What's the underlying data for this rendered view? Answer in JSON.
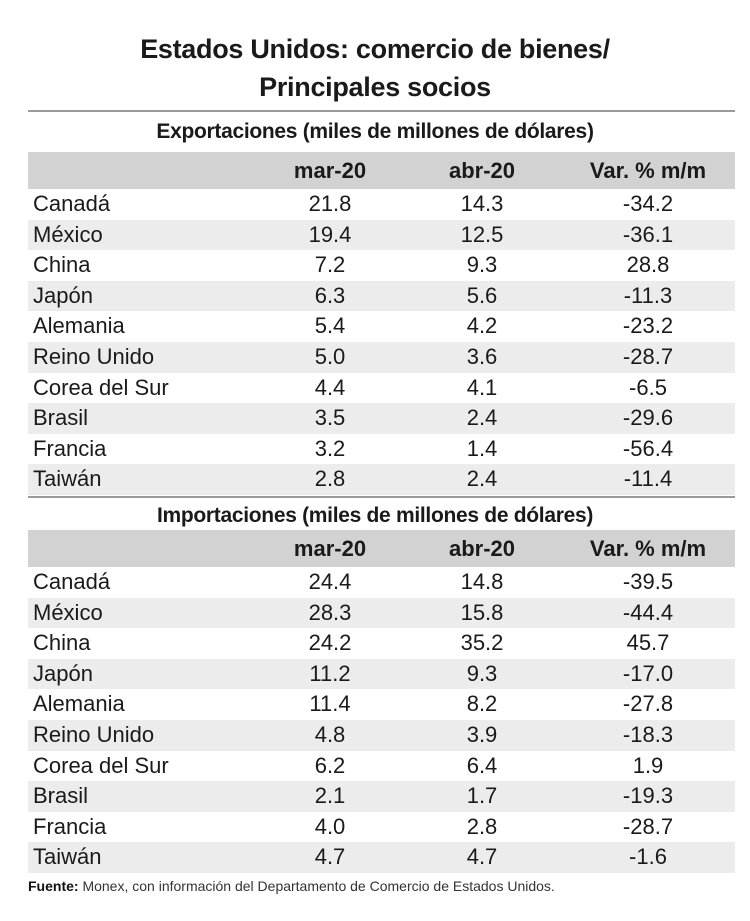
{
  "title_line1": "Estados Unidos: comercio de bienes/",
  "title_line2": "Principales socios",
  "chart_data": {
    "type": "table",
    "title": "Estados Unidos: comercio de bienes/ Principales socios",
    "columns": [
      "",
      "mar-20",
      "abr-20",
      "Var. % m/m"
    ],
    "tables": [
      {
        "title": "Exportaciones (miles de millones de dólares)",
        "rows": [
          [
            "Canadá",
            "21.8",
            "14.3",
            "-34.2"
          ],
          [
            "México",
            "19.4",
            "12.5",
            "-36.1"
          ],
          [
            "China",
            "7.2",
            "9.3",
            "28.8"
          ],
          [
            "Japón",
            "6.3",
            "5.6",
            "-11.3"
          ],
          [
            "Alemania",
            "5.4",
            "4.2",
            "-23.2"
          ],
          [
            "Reino Unido",
            "5.0",
            "3.6",
            "-28.7"
          ],
          [
            "Corea del Sur",
            "4.4",
            "4.1",
            "-6.5"
          ],
          [
            "Brasil",
            "3.5",
            "2.4",
            "-29.6"
          ],
          [
            "Francia",
            "3.2",
            "1.4",
            "-56.4"
          ],
          [
            "Taiwán",
            "2.8",
            "2.4",
            "-11.4"
          ]
        ]
      },
      {
        "title": "Importaciones (miles de millones de dólares)",
        "rows": [
          [
            "Canadá",
            "24.4",
            "14.8",
            "-39.5"
          ],
          [
            "México",
            "28.3",
            "15.8",
            "-44.4"
          ],
          [
            "China",
            "24.2",
            "35.2",
            "45.7"
          ],
          [
            "Japón",
            "11.2",
            "9.3",
            "-17.0"
          ],
          [
            "Alemania",
            "11.4",
            "8.2",
            "-27.8"
          ],
          [
            "Reino Unido",
            "4.8",
            "3.9",
            "-18.3"
          ],
          [
            "Corea del Sur",
            "6.2",
            "6.4",
            "1.9"
          ],
          [
            "Brasil",
            "2.1",
            "1.7",
            "-19.3"
          ],
          [
            "Francia",
            "4.0",
            "2.8",
            "-28.7"
          ],
          [
            "Taiwán",
            "4.7",
            "4.7",
            "-1.6"
          ]
        ]
      }
    ]
  },
  "footer": {
    "label": "Fuente:",
    "text": " Monex, con información del Departamento de Comercio de Estados Unidos."
  },
  "colors": {
    "header_bg": "#d2d2d2",
    "stripe_bg": "#ececec",
    "rule": "#9a9a9a"
  }
}
